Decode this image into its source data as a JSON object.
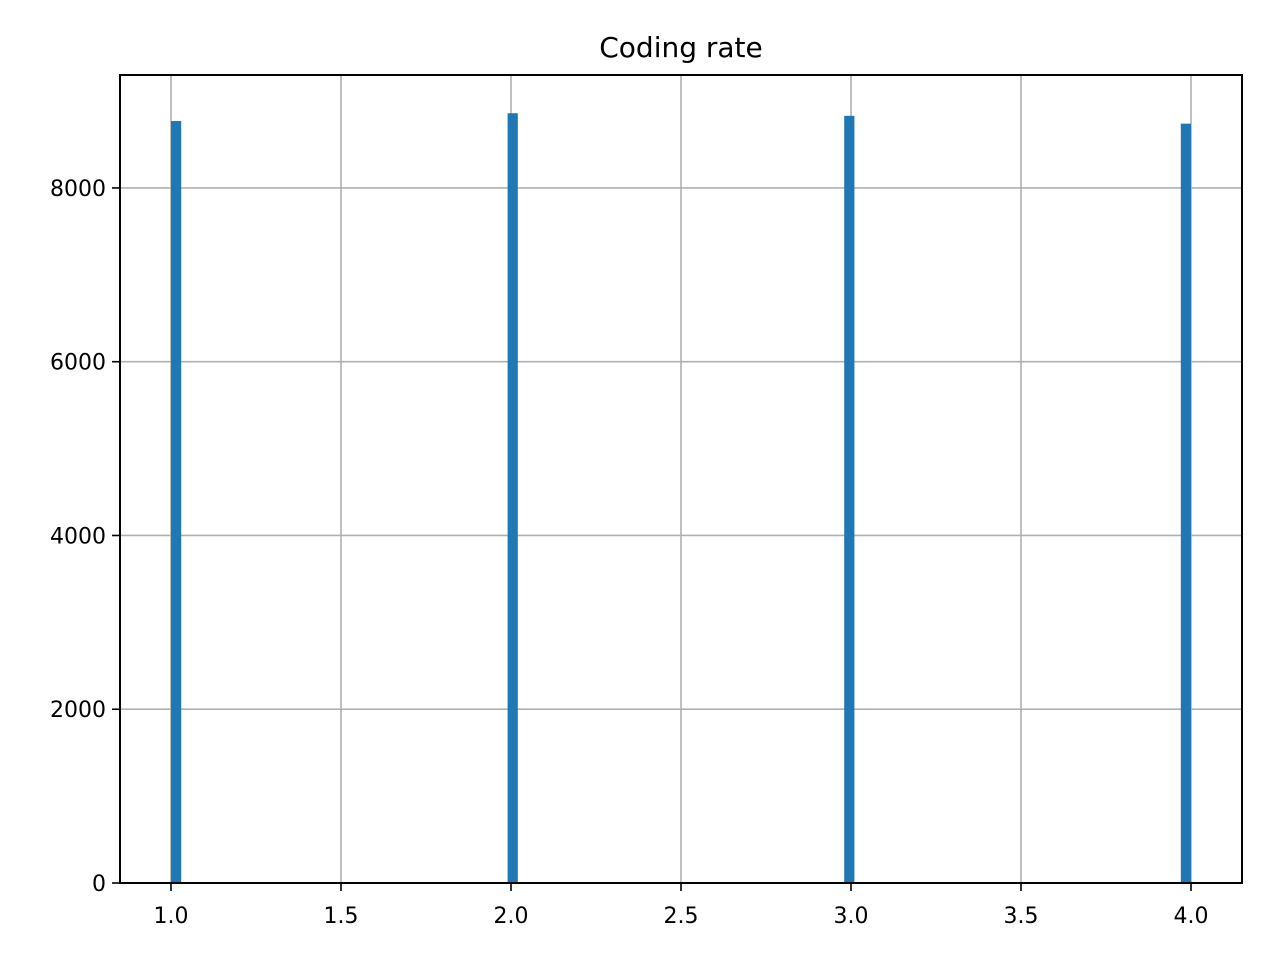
{
  "chart_data": {
    "type": "bar",
    "title": "Coding rate",
    "xlabel": "",
    "ylabel": "",
    "xlim": [
      0.85,
      4.15
    ],
    "ylim": [
      0,
      9300
    ],
    "grid": true,
    "color": "#1f77b4",
    "bin_width": 0.03,
    "x_ticks": [
      "1.0",
      "1.5",
      "2.0",
      "2.5",
      "3.0",
      "3.5",
      "4.0"
    ],
    "y_ticks": [
      "0",
      "2000",
      "4000",
      "6000",
      "8000"
    ],
    "bars": [
      {
        "x_start": 1.0,
        "x_end": 1.03,
        "value": 8770
      },
      {
        "x_start": 1.99,
        "x_end": 2.02,
        "value": 8860
      },
      {
        "x_start": 2.98,
        "x_end": 3.01,
        "value": 8830
      },
      {
        "x_start": 3.97,
        "x_end": 4.0,
        "value": 8740
      }
    ]
  }
}
